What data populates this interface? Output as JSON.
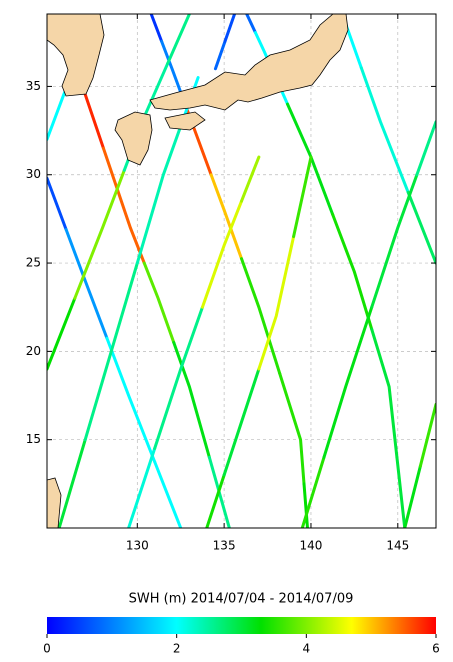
{
  "chart_data": {
    "type": "map",
    "xlim": [
      124.8,
      147.2
    ],
    "ylim": [
      10,
      39.1
    ],
    "xticks": [
      130,
      135,
      140,
      145
    ],
    "yticks": [
      15,
      20,
      25,
      30,
      35
    ],
    "grid": true,
    "colorbar": {
      "label": "SWH (m) 2014/07/04 - 2014/07/09",
      "clim": [
        0,
        6
      ],
      "ticks": [
        0,
        2,
        4,
        6
      ],
      "colormap": [
        {
          "value": 0,
          "color": "#0000ff"
        },
        {
          "value": 2,
          "color": "#00ffff"
        },
        {
          "value": 3.3,
          "color": "#00e000"
        },
        {
          "value": 4.7,
          "color": "#ffff00"
        },
        {
          "value": 6,
          "color": "#ff0000"
        }
      ]
    },
    "tracks": [
      {
        "lon": [
          124.8,
          127,
          129.5,
          132.5
        ],
        "lat": [
          29.8,
          24,
          17.5,
          10
        ],
        "swh": [
          0.6,
          1.2,
          2.0,
          2.0
        ]
      },
      {
        "lon": [
          126.5,
          129.6,
          131.2,
          133,
          135.3
        ],
        "lat": [
          36,
          27,
          23,
          18,
          10
        ],
        "swh": [
          5.8,
          5.5,
          3.8,
          3.2,
          2.6
        ]
      },
      {
        "lon": [
          130.8,
          132,
          133.5,
          135,
          137,
          139.4,
          139.8
        ],
        "lat": [
          39.1,
          36,
          32,
          28,
          22.5,
          15,
          10
        ],
        "swh": [
          0.4,
          1.0,
          5.6,
          5.0,
          3.5,
          3.5,
          3.3
        ]
      },
      {
        "lon": [
          136.3,
          137.3,
          140,
          142.5,
          144.5,
          145.4
        ],
        "lat": [
          39.1,
          37,
          31,
          24.5,
          18,
          10
        ],
        "swh": [
          0.8,
          2.0,
          3.2,
          3.4,
          3.0,
          3.0
        ]
      },
      {
        "lon": [
          141.8,
          144,
          147.2
        ],
        "lat": [
          39.1,
          33,
          25
        ],
        "swh": [
          2.0,
          2.2,
          2.8
        ]
      },
      {
        "lon": [
          125.5,
          128.5,
          131.5,
          133.5
        ],
        "lat": [
          10,
          20,
          30,
          35.5
        ],
        "swh": [
          3.0,
          2.6,
          2.4,
          2.0
        ]
      },
      {
        "lon": [
          124.8,
          128,
          130.5,
          133
        ],
        "lat": [
          19,
          27,
          33.5,
          39.1
        ],
        "swh": [
          3.3,
          4.0,
          2.5,
          2.6
        ]
      },
      {
        "lon": [
          124.8,
          127.5
        ],
        "lat": [
          32,
          39.1
        ],
        "swh": [
          2.0,
          2.2
        ]
      },
      {
        "lon": [
          129.5,
          132.5,
          135,
          137
        ],
        "lat": [
          10,
          19,
          26,
          31
        ],
        "swh": [
          2.2,
          2.6,
          4.5,
          4.2
        ]
      },
      {
        "lon": [
          134,
          136,
          138,
          140
        ],
        "lat": [
          10,
          16,
          22,
          31
        ],
        "swh": [
          3.4,
          3.0,
          4.5,
          3.6
        ]
      },
      {
        "lon": [
          139.5,
          142,
          145,
          147.2
        ],
        "lat": [
          10,
          18,
          27,
          33
        ],
        "swh": [
          3.5,
          3.2,
          3.0,
          2.6
        ]
      },
      {
        "lon": [
          145.4,
          147.2
        ],
        "lat": [
          10,
          17
        ],
        "swh": [
          3.2,
          3.6
        ]
      },
      {
        "lon": [
          134.5,
          135.6
        ],
        "lat": [
          36,
          39.1
        ],
        "swh": [
          0.8,
          0.6
        ]
      }
    ]
  }
}
